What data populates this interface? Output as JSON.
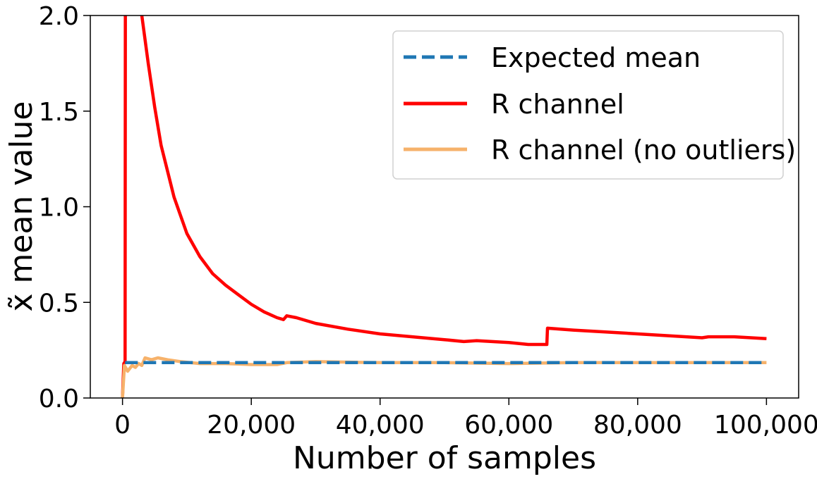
{
  "chart_data": {
    "type": "line",
    "xlabel": "Number of samples",
    "ylabel": "x̃ mean value",
    "xlim": [
      -5000,
      105000
    ],
    "ylim": [
      0,
      2.0
    ],
    "x_ticks": [
      0,
      20000,
      40000,
      60000,
      80000,
      100000
    ],
    "x_tick_labels": [
      "0",
      "20,000",
      "40,000",
      "60,000",
      "80,000",
      "100,000"
    ],
    "y_ticks": [
      0,
      0.5,
      1.0,
      1.5,
      2.0
    ],
    "y_tick_labels": [
      "0.0",
      "0.5",
      "1.0",
      "1.5",
      "2.0"
    ],
    "grid": false,
    "legend_position": "top-right",
    "series": [
      {
        "name": "Expected mean",
        "color": "#1f77b4",
        "style": "dashed",
        "x": [
          400,
          100000
        ],
        "y": [
          0.185,
          0.185
        ]
      },
      {
        "name": "R channel",
        "color": "#ff0000",
        "style": "solid",
        "x": [
          0,
          200,
          400,
          450,
          3000,
          4000,
          5000,
          6000,
          8000,
          10000,
          12000,
          14000,
          16000,
          18000,
          20000,
          22000,
          24000,
          25000,
          25500,
          27000,
          30000,
          35000,
          40000,
          45000,
          50000,
          53000,
          55000,
          60000,
          63000,
          65900,
          66000,
          70000,
          75000,
          80000,
          85000,
          90000,
          91000,
          95000,
          100000
        ],
        "y": [
          0.0,
          0.18,
          0.19,
          2.1,
          2.0,
          1.75,
          1.52,
          1.32,
          1.05,
          0.86,
          0.74,
          0.65,
          0.59,
          0.54,
          0.49,
          0.45,
          0.42,
          0.41,
          0.43,
          0.42,
          0.39,
          0.36,
          0.335,
          0.32,
          0.305,
          0.295,
          0.3,
          0.29,
          0.28,
          0.28,
          0.365,
          0.355,
          0.345,
          0.335,
          0.325,
          0.315,
          0.32,
          0.32,
          0.31
        ]
      },
      {
        "name": "R channel (no outliers)",
        "color": "#f6b26b",
        "style": "solid",
        "x": [
          0,
          300,
          800,
          1500,
          2000,
          2500,
          3000,
          3500,
          4500,
          5500,
          7000,
          9000,
          12000,
          16000,
          20000,
          24000,
          25500,
          30000,
          40000,
          50000,
          60000,
          70000,
          80000,
          90000,
          100000
        ],
        "y": [
          0.0,
          0.17,
          0.14,
          0.17,
          0.16,
          0.18,
          0.17,
          0.21,
          0.2,
          0.21,
          0.2,
          0.19,
          0.18,
          0.18,
          0.175,
          0.175,
          0.185,
          0.19,
          0.185,
          0.185,
          0.18,
          0.185,
          0.185,
          0.185,
          0.185
        ]
      }
    ]
  }
}
